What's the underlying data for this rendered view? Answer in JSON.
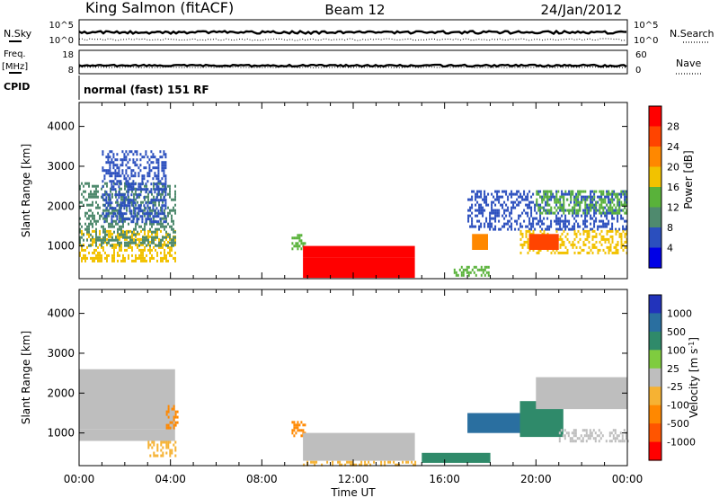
{
  "header": {
    "station": "King Salmon (fitACF)",
    "beam": "Beam 12",
    "date": "24/Jan/2012"
  },
  "top_panels": {
    "nsky_label": "N.Sky",
    "nsearch_label": "N.Search",
    "freq_label": "Freq.",
    "freq_unit": "[MHz]",
    "nave_label": "Nave",
    "cpid_label": "CPID",
    "cpid_value": "normal (fast) 151 RF",
    "noise_ticks_left": [
      "10^5",
      "10^0"
    ],
    "noise_ticks_right": [
      "10^5",
      "10^0"
    ],
    "freq_ticks": [
      "18",
      "8"
    ],
    "nave_ticks": [
      "60",
      "0"
    ]
  },
  "power_colorbar": {
    "label": "Power [dB]",
    "ticks": [
      "28",
      "24",
      "20",
      "16",
      "12",
      "8",
      "4"
    ],
    "colors": [
      "#0000e6",
      "#2b4fbe",
      "#4f8a6e",
      "#59b23a",
      "#f2c200",
      "#ff8800",
      "#ff4400",
      "#ff0000"
    ]
  },
  "velocity_colorbar": {
    "label": "Velocity [m s",
    "label_sup": "-1",
    "label_close": "]",
    "ticks": [
      "1000",
      "500",
      "100",
      "25",
      "-25",
      "-100",
      "-500",
      "-1000"
    ],
    "colors": [
      "#2233bb",
      "#2a6fa0",
      "#2f8a6a",
      "#7fcc3f",
      "#bebebe",
      "#f6b233",
      "#ff8800",
      "#ff5500",
      "#ff0000"
    ]
  },
  "chart_data": [
    {
      "type": "heatmap",
      "title": "Power",
      "ylabel": "Slant Range [km]",
      "xlabel": "Time UT",
      "xticks": [
        "00:00",
        "04:00",
        "08:00",
        "12:00",
        "16:00",
        "20:00",
        "00:00"
      ],
      "yticks": [
        "1000",
        "2000",
        "3000",
        "4000"
      ],
      "xlim_hours": [
        0,
        24
      ],
      "ylim_km": [
        180,
        4600
      ],
      "regions": [
        {
          "t0": 0.0,
          "t1": 4.2,
          "r0": 600,
          "r1": 1400,
          "value": 16
        },
        {
          "t0": 0.0,
          "t1": 4.2,
          "r0": 1000,
          "r1": 2600,
          "value": 8
        },
        {
          "t0": 1.0,
          "t1": 3.8,
          "r0": 1600,
          "r1": 3400,
          "value": 4
        },
        {
          "t0": 9.3,
          "t1": 9.9,
          "r0": 900,
          "r1": 1300,
          "value": 12
        },
        {
          "t0": 9.8,
          "t1": 14.7,
          "r0": 700,
          "r1": 1000,
          "value": 28
        },
        {
          "t0": 9.8,
          "t1": 14.7,
          "r0": 200,
          "r1": 700,
          "value": 28
        },
        {
          "t0": 16.4,
          "t1": 17.9,
          "r0": 250,
          "r1": 500,
          "value": 12
        },
        {
          "t0": 17.2,
          "t1": 17.9,
          "r0": 900,
          "r1": 1300,
          "value": 20
        },
        {
          "t0": 17.0,
          "t1": 24.0,
          "r0": 1400,
          "r1": 2400,
          "value": 4
        },
        {
          "t0": 19.3,
          "t1": 24.0,
          "r0": 800,
          "r1": 1400,
          "value": 16
        },
        {
          "t0": 19.7,
          "t1": 21.0,
          "r0": 900,
          "r1": 1300,
          "value": 24
        },
        {
          "t0": 20.0,
          "t1": 24.0,
          "r0": 1800,
          "r1": 2400,
          "value": 12
        }
      ]
    },
    {
      "type": "heatmap",
      "title": "Velocity",
      "ylabel": "Slant Range [km]",
      "xlabel": "Time UT",
      "xticks": [
        "00:00",
        "04:00",
        "08:00",
        "12:00",
        "16:00",
        "20:00",
        "00:00"
      ],
      "yticks": [
        "1000",
        "2000",
        "3000",
        "4000"
      ],
      "xlim_hours": [
        0,
        24
      ],
      "ylim_km": [
        180,
        4600
      ],
      "regions": [
        {
          "t0": 0.0,
          "t1": 4.2,
          "r0": 800,
          "r1": 1100,
          "value": 0
        },
        {
          "t0": 0.0,
          "t1": 4.2,
          "r0": 1100,
          "r1": 2600,
          "value": -25
        },
        {
          "t0": 3.0,
          "t1": 4.3,
          "r0": 400,
          "r1": 800,
          "value": -100
        },
        {
          "t0": 3.8,
          "t1": 4.3,
          "r0": 1100,
          "r1": 1700,
          "value": -500
        },
        {
          "t0": 9.3,
          "t1": 9.9,
          "r0": 900,
          "r1": 1300,
          "value": -500
        },
        {
          "t0": 9.8,
          "t1": 14.7,
          "r0": 300,
          "r1": 1000,
          "value": 0
        },
        {
          "t0": 9.8,
          "t1": 14.7,
          "r0": 200,
          "r1": 300,
          "value": -100
        },
        {
          "t0": 15.0,
          "t1": 18.0,
          "r0": 250,
          "r1": 500,
          "value": 100
        },
        {
          "t0": 17.0,
          "t1": 19.5,
          "r0": 1000,
          "r1": 1500,
          "value": 500
        },
        {
          "t0": 19.3,
          "t1": 21.2,
          "r0": 900,
          "r1": 1800,
          "value": 100
        },
        {
          "t0": 21.0,
          "t1": 24.0,
          "r0": 800,
          "r1": 1100,
          "value": 0
        },
        {
          "t0": 20.0,
          "t1": 24.0,
          "r0": 1600,
          "r1": 2400,
          "value": -25
        }
      ]
    }
  ]
}
